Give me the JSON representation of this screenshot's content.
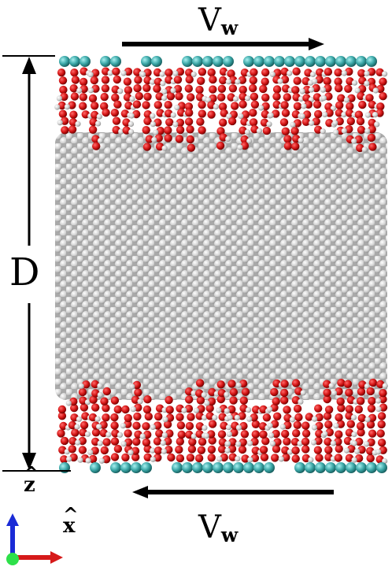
{
  "labels": {
    "top_velocity": "V",
    "top_velocity_sub": "w",
    "bottom_velocity": "V",
    "bottom_velocity_sub": "w",
    "distance": "D",
    "z_axis": "z",
    "x_axis": "x"
  },
  "colors": {
    "wall_atom": "#3aa6a6",
    "oxygen": "#d41515",
    "hydrogen": "#f0f0f0",
    "liquid": "#d8d8d8",
    "arrow": "#000000",
    "axis_z": "#1a2bd6",
    "axis_x": "#d61a1a",
    "axis_y": "#2ee04a"
  }
}
